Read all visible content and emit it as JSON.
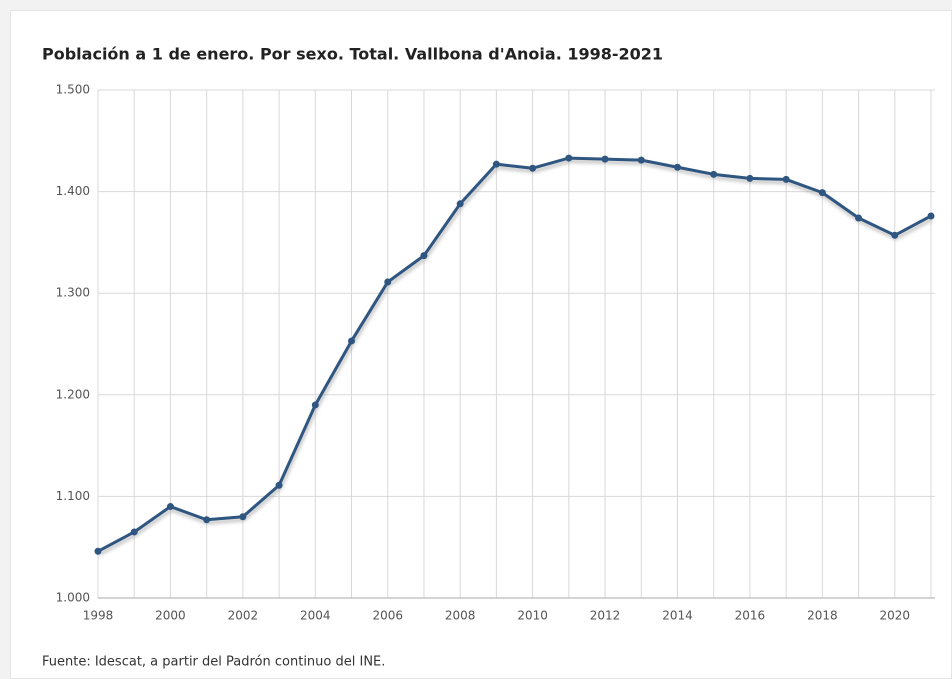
{
  "chart_data": {
    "type": "line",
    "title": "Población a 1 de enero. Por sexo. Total. Vallbona d'Anoia. 1998-2021",
    "source": "Fuente: Idescat, a partir del Padrón continuo del INE.",
    "x": [
      1998,
      1999,
      2000,
      2001,
      2002,
      2003,
      2004,
      2005,
      2006,
      2007,
      2008,
      2009,
      2010,
      2011,
      2012,
      2013,
      2014,
      2015,
      2016,
      2017,
      2018,
      2019,
      2020,
      2021
    ],
    "series": [
      {
        "name": "Total",
        "color": "#2f5680",
        "values": [
          1046,
          1065,
          1090,
          1077,
          1080,
          1111,
          1190,
          1253,
          1311,
          1337,
          1388,
          1427,
          1423,
          1433,
          1432,
          1431,
          1424,
          1417,
          1413,
          1412,
          1399,
          1374,
          1357,
          1376
        ]
      }
    ],
    "xlim": [
      1998,
      2021
    ],
    "xticks": [
      1998,
      2000,
      2002,
      2004,
      2006,
      2008,
      2010,
      2012,
      2014,
      2016,
      2018,
      2020
    ],
    "ylim": [
      1000,
      1500
    ],
    "yticks": [
      {
        "value": 1000,
        "label": "1.000"
      },
      {
        "value": 1100,
        "label": "1.100"
      },
      {
        "value": 1200,
        "label": "1.200"
      },
      {
        "value": 1300,
        "label": "1.300"
      },
      {
        "value": 1400,
        "label": "1.400"
      },
      {
        "value": 1500,
        "label": "1.500"
      }
    ],
    "grid": true
  }
}
